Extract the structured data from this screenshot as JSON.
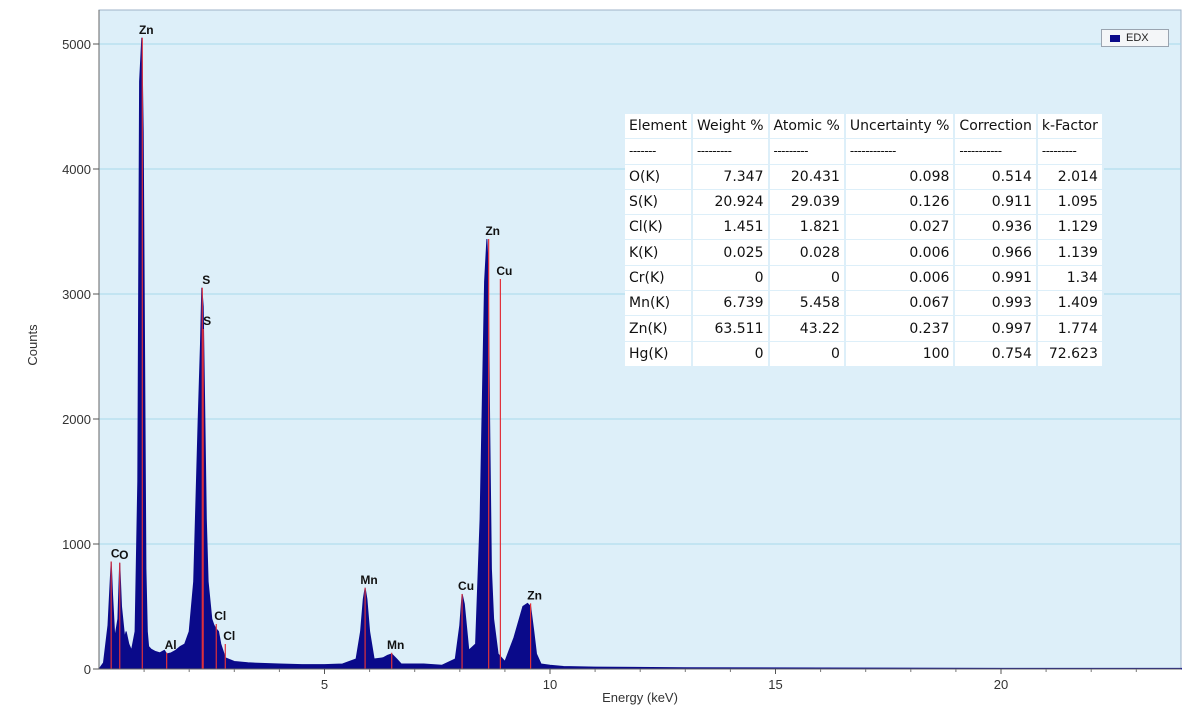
{
  "chart_data": {
    "type": "area",
    "xlabel": "Energy (keV)",
    "ylabel": "Counts",
    "xlim": [
      0,
      24
    ],
    "ylim": [
      0,
      5200
    ],
    "x_ticks": [
      "5",
      "10",
      "15",
      "20"
    ],
    "y_ticks": [
      "0",
      "1000",
      "2000",
      "3000",
      "4000",
      "5000"
    ],
    "grid": "horizontal",
    "legend": {
      "position": "top-right",
      "entries": [
        "EDX"
      ]
    },
    "series": [
      {
        "name": "EDX",
        "color": "#0a0a8a",
        "x": [
          0.0,
          0.1,
          0.2,
          0.27,
          0.3,
          0.35,
          0.42,
          0.46,
          0.5,
          0.57,
          0.6,
          0.66,
          0.72,
          0.8,
          0.86,
          0.9,
          0.95,
          0.98,
          1.01,
          1.04,
          1.07,
          1.1,
          1.15,
          1.25,
          1.35,
          1.45,
          1.5,
          1.6,
          1.7,
          1.8,
          1.9,
          2.0,
          2.1,
          2.2,
          2.25,
          2.28,
          2.31,
          2.34,
          2.38,
          2.42,
          2.5,
          2.55,
          2.6,
          2.65,
          2.7,
          2.8,
          3.0,
          3.3,
          3.6,
          4.0,
          4.5,
          5.0,
          5.4,
          5.7,
          5.8,
          5.86,
          5.9,
          5.94,
          6.0,
          6.1,
          6.3,
          6.4,
          6.49,
          6.6,
          6.7,
          6.9,
          7.2,
          7.6,
          7.9,
          8.0,
          8.05,
          8.1,
          8.2,
          8.35,
          8.45,
          8.55,
          8.6,
          8.63,
          8.66,
          8.7,
          8.75,
          8.85,
          9.0,
          9.2,
          9.4,
          9.5,
          9.57,
          9.64,
          9.7,
          9.8,
          10.0,
          10.3,
          11.0,
          13.0,
          16.0,
          20.0,
          24.0
        ],
        "values": [
          0,
          50,
          350,
          860,
          600,
          250,
          400,
          850,
          500,
          250,
          300,
          200,
          150,
          300,
          1500,
          4700,
          5050,
          4300,
          2500,
          800,
          300,
          180,
          160,
          140,
          130,
          150,
          120,
          130,
          150,
          180,
          200,
          300,
          700,
          2000,
          2600,
          3050,
          2900,
          2200,
          1200,
          700,
          400,
          350,
          320,
          300,
          200,
          90,
          60,
          50,
          45,
          40,
          35,
          35,
          40,
          80,
          300,
          560,
          650,
          560,
          300,
          80,
          90,
          110,
          120,
          80,
          40,
          40,
          40,
          30,
          80,
          350,
          600,
          520,
          150,
          200,
          1200,
          3100,
          3440,
          3200,
          2000,
          800,
          400,
          120,
          60,
          250,
          500,
          525,
          500,
          300,
          120,
          40,
          30,
          20,
          15,
          10,
          8,
          5,
          5
        ]
      }
    ],
    "peak_labels": [
      {
        "text": "C",
        "x": 0.27,
        "y": 860
      },
      {
        "text": "O",
        "x": 0.46,
        "y": 850
      },
      {
        "text": "Zn",
        "x": 0.96,
        "y": 5050
      },
      {
        "text": "Al",
        "x": 1.5,
        "y": 130
      },
      {
        "text": "S",
        "x": 2.29,
        "y": 3050
      },
      {
        "text": "S",
        "x": 2.31,
        "y": 2720
      },
      {
        "text": "Cl",
        "x": 2.6,
        "y": 360
      },
      {
        "text": "Cl",
        "x": 2.8,
        "y": 200
      },
      {
        "text": "Mn",
        "x": 5.9,
        "y": 650
      },
      {
        "text": "Mn",
        "x": 6.49,
        "y": 130
      },
      {
        "text": "Cu",
        "x": 8.05,
        "y": 600
      },
      {
        "text": "Zn",
        "x": 8.64,
        "y": 3440
      },
      {
        "text": "Cu",
        "x": 8.9,
        "y": 3120
      },
      {
        "text": "Zn",
        "x": 9.57,
        "y": 525
      }
    ],
    "table": {
      "headers": [
        "Element",
        "Weight %",
        "Atomic %",
        "Uncertainty %",
        "Correction",
        "k-Factor"
      ],
      "dashes": [
        "-------",
        "---------",
        "---------",
        "------------",
        "-----------",
        "---------"
      ],
      "rows": [
        [
          "O(K)",
          "7.347",
          "20.431",
          "0.098",
          "0.514",
          "2.014"
        ],
        [
          "S(K)",
          "20.924",
          "29.039",
          "0.126",
          "0.911",
          "1.095"
        ],
        [
          "Cl(K)",
          "1.451",
          "1.821",
          "0.027",
          "0.936",
          "1.129"
        ],
        [
          "K(K)",
          "0.025",
          "0.028",
          "0.006",
          "0.966",
          "1.139"
        ],
        [
          "Cr(K)",
          "0",
          "0",
          "0.006",
          "0.991",
          "1.34"
        ],
        [
          "Mn(K)",
          "6.739",
          "5.458",
          "0.067",
          "0.993",
          "1.409"
        ],
        [
          "Zn(K)",
          "63.511",
          "43.22",
          "0.237",
          "0.997",
          "1.774"
        ],
        [
          "Hg(K)",
          "0",
          "0",
          "100",
          "0.754",
          "72.623"
        ]
      ]
    }
  }
}
